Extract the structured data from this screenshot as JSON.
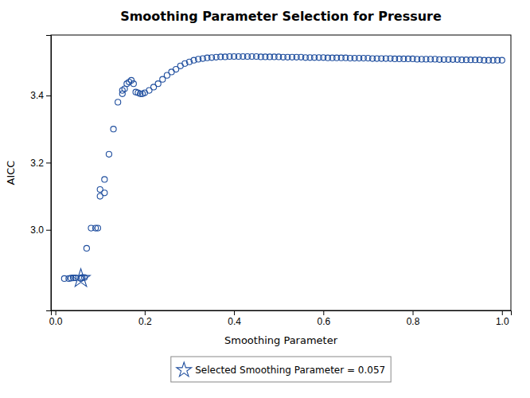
{
  "chart_data": {
    "type": "scatter",
    "title": "Smoothing Parameter Selection for Pressure",
    "xlabel": "Smoothing Parameter",
    "ylabel": "AICC",
    "xlim": [
      -0.01,
      1.02
    ],
    "ylim": [
      2.76,
      3.58
    ],
    "xticks": [
      {
        "value": 0.0,
        "label": "0.0"
      },
      0.2,
      0.4,
      0.6,
      0.8,
      {
        "value": 1.0,
        "label": "1.0"
      }
    ],
    "yticks": [
      {
        "value": 3.0,
        "label": "3.0"
      },
      {
        "value": 3.2,
        "label": "3.2"
      },
      {
        "value": 3.4,
        "label": "3.4"
      }
    ],
    "grid": false,
    "legend": "bottom",
    "series": [
      {
        "marker": "circle",
        "color": "#1f4e9e",
        "x": [
          0.02,
          0.03,
          0.035,
          0.04,
          0.045,
          0.057,
          0.057,
          0.06,
          0.065,
          0.07,
          0.08,
          0.09,
          0.095,
          0.1,
          0.1,
          0.11,
          0.11,
          0.12,
          0.13,
          0.14,
          0.15,
          0.15,
          0.155,
          0.16,
          0.165,
          0.17,
          0.175,
          0.18,
          0.185,
          0.19,
          0.195,
          0.2,
          0.21,
          0.22,
          0.23,
          0.24,
          0.25,
          0.26,
          0.27,
          0.28,
          0.29,
          0.3,
          0.31,
          0.32,
          0.33,
          0.34,
          0.35,
          0.36,
          0.37,
          0.38,
          0.39,
          0.4,
          0.41,
          0.42,
          0.43,
          0.44,
          0.45,
          0.46,
          0.47,
          0.48,
          0.49,
          0.5,
          0.51,
          0.52,
          0.53,
          0.54,
          0.55,
          0.56,
          0.57,
          0.58,
          0.59,
          0.6,
          0.61,
          0.62,
          0.63,
          0.64,
          0.65,
          0.66,
          0.67,
          0.68,
          0.69,
          0.7,
          0.71,
          0.72,
          0.73,
          0.74,
          0.75,
          0.76,
          0.77,
          0.78,
          0.79,
          0.8,
          0.81,
          0.82,
          0.83,
          0.84,
          0.85,
          0.86,
          0.87,
          0.88,
          0.89,
          0.9,
          0.91,
          0.92,
          0.93,
          0.94,
          0.95,
          0.96,
          0.97,
          0.98,
          0.99,
          1.0
        ],
        "values": [
          2.855,
          2.855,
          2.856,
          2.857,
          2.857,
          2.855,
          2.856,
          2.858,
          2.858,
          2.945,
          3.005,
          3.005,
          3.005,
          3.1,
          3.12,
          3.11,
          3.15,
          3.225,
          3.3,
          3.38,
          3.415,
          3.405,
          3.42,
          3.435,
          3.44,
          3.445,
          3.435,
          3.41,
          3.408,
          3.405,
          3.405,
          3.408,
          3.415,
          3.425,
          3.435,
          3.448,
          3.46,
          3.47,
          3.478,
          3.488,
          3.495,
          3.5,
          3.505,
          3.508,
          3.51,
          3.512,
          3.513,
          3.514,
          3.515,
          3.515,
          3.516,
          3.516,
          3.516,
          3.516,
          3.516,
          3.516,
          3.516,
          3.515,
          3.515,
          3.515,
          3.515,
          3.515,
          3.514,
          3.514,
          3.514,
          3.514,
          3.514,
          3.513,
          3.513,
          3.513,
          3.513,
          3.513,
          3.512,
          3.512,
          3.512,
          3.512,
          3.512,
          3.511,
          3.511,
          3.511,
          3.511,
          3.511,
          3.51,
          3.51,
          3.51,
          3.51,
          3.51,
          3.509,
          3.509,
          3.509,
          3.509,
          3.509,
          3.508,
          3.508,
          3.508,
          3.508,
          3.508,
          3.507,
          3.507,
          3.507,
          3.507,
          3.507,
          3.506,
          3.506,
          3.506,
          3.506,
          3.506,
          3.505,
          3.505,
          3.505,
          3.505,
          3.505
        ]
      },
      {
        "name": "Selected Smoothing Parameter = 0.057",
        "marker": "star",
        "color": "#1f4e9e",
        "x": [
          0.057
        ],
        "values": [
          2.855
        ]
      }
    ]
  }
}
